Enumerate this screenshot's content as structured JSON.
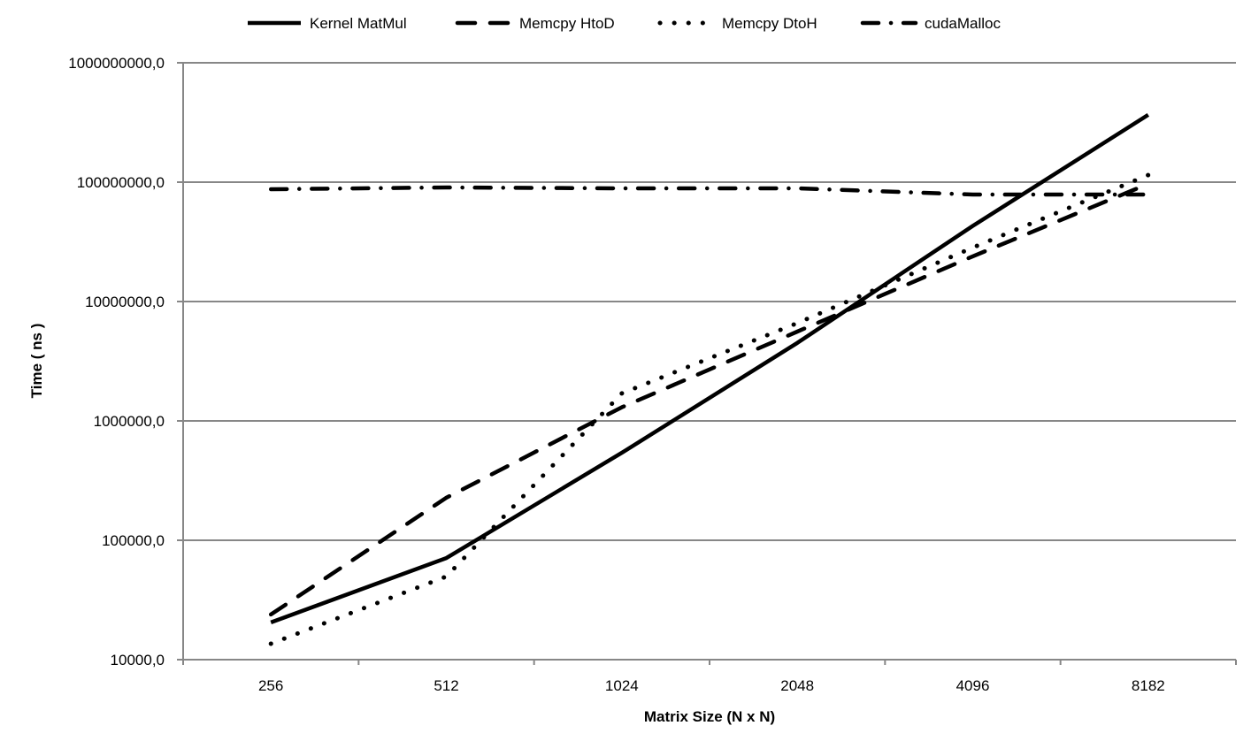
{
  "chart_data": {
    "type": "line",
    "title": "",
    "xlabel": "Matrix Size (N x N)",
    "ylabel": "Time ( ns )",
    "yscale": "log",
    "ylim": [
      10000,
      1000000000
    ],
    "grid": true,
    "legend_position": "top",
    "categories": [
      "256",
      "512",
      "1024",
      "2048",
      "4096",
      "8182"
    ],
    "y_tick_labels": [
      "10000,0",
      "100000,0",
      "1000000,0",
      "10000000,0",
      "100000000,0",
      "1000000000,0"
    ],
    "y_tick_values": [
      10000,
      100000,
      1000000,
      10000000,
      100000000,
      1000000000
    ],
    "series": [
      {
        "name": "Kernel MatMul",
        "style": "solid",
        "values": [
          20500,
          71000,
          540000,
          4500000,
          43000000,
          366000000
        ]
      },
      {
        "name": "Memcpy HtoD",
        "style": "dash",
        "values": [
          23900,
          227000,
          1300000,
          5600000,
          23900000,
          96700000
        ]
      },
      {
        "name": "Memcpy DtoH",
        "style": "dot",
        "values": [
          13600,
          49700,
          1700000,
          6600000,
          28300000,
          114600000
        ]
      },
      {
        "name": "cudaMalloc",
        "style": "dashdot",
        "values": [
          87300000,
          90300000,
          88800000,
          88800000,
          78700000,
          78700000
        ]
      }
    ]
  },
  "colors": {
    "line": "#000000",
    "grid": "#878787",
    "background": "#ffffff"
  }
}
